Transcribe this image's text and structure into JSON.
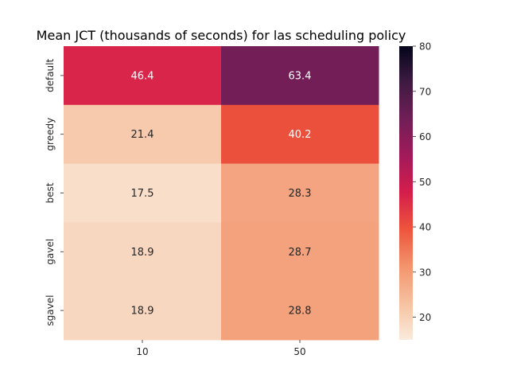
{
  "chart_data": {
    "type": "heatmap",
    "title": "Mean JCT (thousands of seconds) for las scheduling policy",
    "xlabel": "",
    "ylabel": "",
    "x_categories": [
      "10",
      "50"
    ],
    "y_categories": [
      "default",
      "greedy",
      "best",
      "gavel",
      "sgavel"
    ],
    "values": [
      [
        46.4,
        63.4
      ],
      [
        21.4,
        40.2
      ],
      [
        17.5,
        28.3
      ],
      [
        18.9,
        28.7
      ],
      [
        18.9,
        28.8
      ]
    ],
    "colorbar": {
      "min": 15,
      "max": 80,
      "ticks": [
        20,
        30,
        40,
        50,
        60,
        70,
        80
      ]
    },
    "colormap": "rocket_r"
  }
}
